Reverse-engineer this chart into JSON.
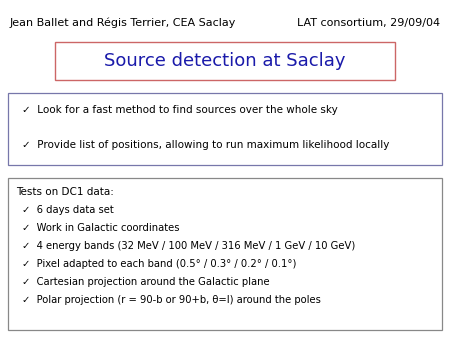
{
  "header_left": "Jean Ballet and Régis Terrier, CEA Saclay",
  "header_right": "LAT consortium, 29/09/04",
  "title": "Source detection at Saclay",
  "title_color": "#1a1aaa",
  "title_box_edge_color": "#cc6666",
  "bullet_box1_items": [
    "Look for a fast method to find sources over the whole sky",
    "Provide list of positions, allowing to run maximum likelihood locally"
  ],
  "bullet_box1_edge_color": "#7777aa",
  "bullet_box2_title": "Tests on DC1 data:",
  "bullet_box2_items": [
    "6 days data set",
    "Work in Galactic coordinates",
    "4 energy bands (32 MeV / 100 MeV / 316 MeV / 1 GeV / 10 GeV)",
    "Pixel adapted to each band (0.5° / 0.3° / 0.2° / 0.1°)",
    "Cartesian projection around the Galactic plane",
    "Polar projection (r = 90-b or 90+b, θ=l) around the poles"
  ],
  "bullet_box2_edge_color": "#888888",
  "background_color": "#ffffff",
  "text_color": "#000000",
  "font_size_header": 8,
  "font_size_title": 13,
  "font_size_body": 7.5,
  "font_size_body2": 7.2
}
